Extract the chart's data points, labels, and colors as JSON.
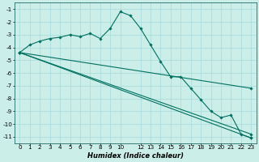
{
  "xlabel": "Humidex (Indice chaleur)",
  "bg_color": "#cceee8",
  "grid_color": "#aadddd",
  "line_color": "#007060",
  "xlim": [
    -0.5,
    23.5
  ],
  "ylim": [
    -11.5,
    -0.5
  ],
  "xticks": [
    0,
    1,
    2,
    3,
    4,
    5,
    6,
    7,
    8,
    9,
    10,
    12,
    13,
    14,
    15,
    16,
    17,
    18,
    19,
    20,
    21,
    22,
    23
  ],
  "xtick_labels": [
    "0",
    "1",
    "2",
    "3",
    "4",
    "5",
    "6",
    "7",
    "8",
    "9",
    "10",
    "12",
    "13",
    "14",
    "15",
    "16",
    "17",
    "18",
    "19",
    "20",
    "21",
    "22",
    "23"
  ],
  "yticks": [
    -11,
    -10,
    -9,
    -8,
    -7,
    -6,
    -5,
    -4,
    -3,
    -2,
    -1
  ],
  "ytick_labels": [
    "-11",
    "-10",
    "-9",
    "-8",
    "-7",
    "-6",
    "-5",
    "-4",
    "-3",
    "-2",
    "-1"
  ],
  "line1_x": [
    0,
    1,
    2,
    3,
    4,
    5,
    6,
    7,
    8,
    9,
    10,
    11,
    12,
    13,
    14,
    15,
    16,
    17,
    18,
    19,
    20,
    21,
    22,
    23
  ],
  "line1_y": [
    -4.4,
    -3.8,
    -3.5,
    -3.3,
    -3.2,
    -3.0,
    -3.15,
    -2.9,
    -3.3,
    -2.5,
    -1.2,
    -1.5,
    -2.5,
    -3.8,
    -5.1,
    -6.3,
    -6.3,
    -7.2,
    -8.1,
    -9.0,
    -9.5,
    -9.3,
    -10.8,
    -11.1
  ],
  "line2_x": [
    0,
    23
  ],
  "line2_y": [
    -4.4,
    -7.2
  ],
  "line3_x": [
    0,
    23
  ],
  "line3_y": [
    -4.4,
    -10.8
  ],
  "line4_x": [
    0,
    23
  ],
  "line4_y": [
    -4.4,
    -11.1
  ],
  "xlabel_fontsize": 6.0,
  "tick_fontsize": 5.2,
  "lw": 0.8,
  "ms": 1.8
}
